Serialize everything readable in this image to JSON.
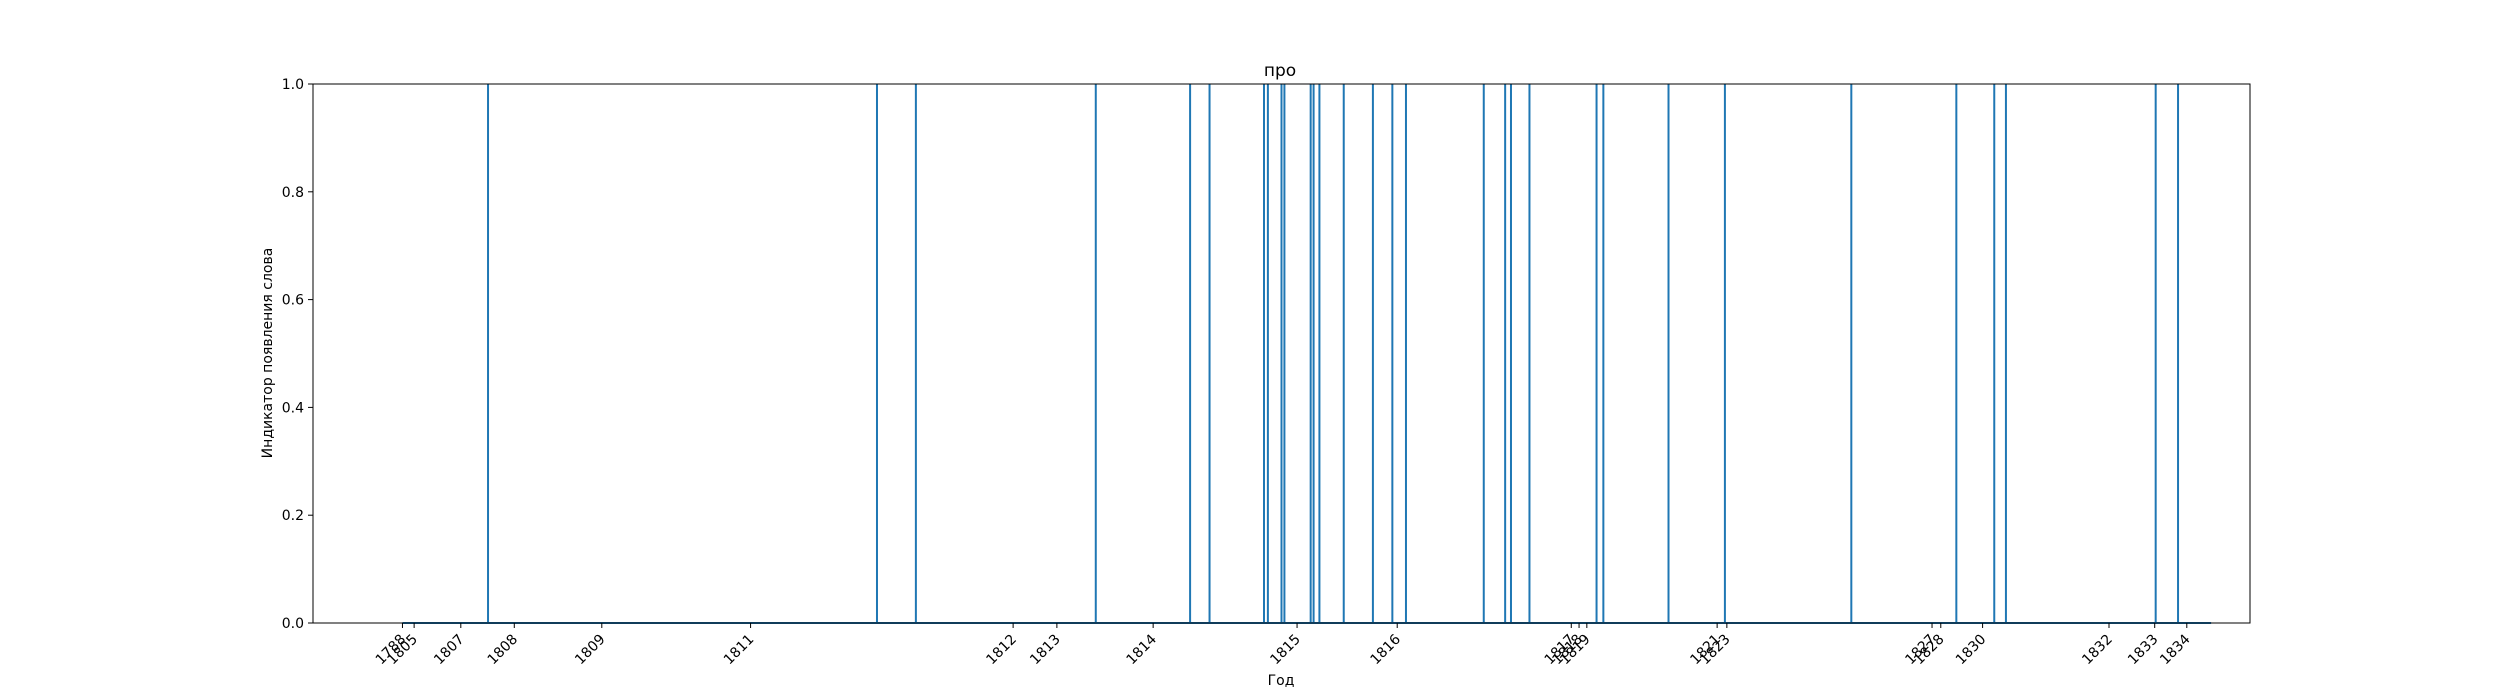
{
  "chart_data": {
    "type": "bar",
    "title": "про",
    "xlabel": "Год",
    "ylabel": "Индикатор появления слова",
    "ylim": [
      0,
      1
    ],
    "y_ticks": [
      "0.0",
      "0.2",
      "0.4",
      "0.6",
      "0.8",
      "1.0"
    ],
    "x_ticks": [
      {
        "label": "1788",
        "value": 0.0
      },
      {
        "label": "1805",
        "value": 0.12
      },
      {
        "label": "1807",
        "value": 0.6
      },
      {
        "label": "1808",
        "value": 1.15
      },
      {
        "label": "1809",
        "value": 2.05
      },
      {
        "label": "1811",
        "value": 3.58
      },
      {
        "label": "1812",
        "value": 6.28
      },
      {
        "label": "1813",
        "value": 6.73
      },
      {
        "label": "1814",
        "value": 7.72
      },
      {
        "label": "1815",
        "value": 9.2
      },
      {
        "label": "1816",
        "value": 10.23
      },
      {
        "label": "1817",
        "value": 12.02
      },
      {
        "label": "1818",
        "value": 12.1
      },
      {
        "label": "1819",
        "value": 12.18
      },
      {
        "label": "1821",
        "value": 13.52
      },
      {
        "label": "1823",
        "value": 13.62
      },
      {
        "label": "1827",
        "value": 15.73
      },
      {
        "label": "1828",
        "value": 15.82
      },
      {
        "label": "1830",
        "value": 16.25
      },
      {
        "label": "1832",
        "value": 17.55
      },
      {
        "label": "1833",
        "value": 18.02
      },
      {
        "label": "1834",
        "value": 18.35
      }
    ],
    "events_x": [
      0.88,
      4.88,
      5.28,
      7.13,
      8.1,
      8.3,
      8.86,
      8.9,
      9.04,
      9.07,
      9.34,
      9.37,
      9.43,
      9.68,
      9.98,
      10.18,
      10.32,
      11.12,
      11.34,
      11.4,
      11.59,
      12.28,
      12.35,
      13.02,
      13.6,
      14.9,
      15.98,
      16.37,
      16.49,
      18.03,
      18.26
    ],
    "event_value": 1.0,
    "xlim": [
      -0.92,
      19.0
    ],
    "baseline_segments": [
      [
        0.0,
        18.6
      ]
    ],
    "color": "#1f77b4"
  }
}
